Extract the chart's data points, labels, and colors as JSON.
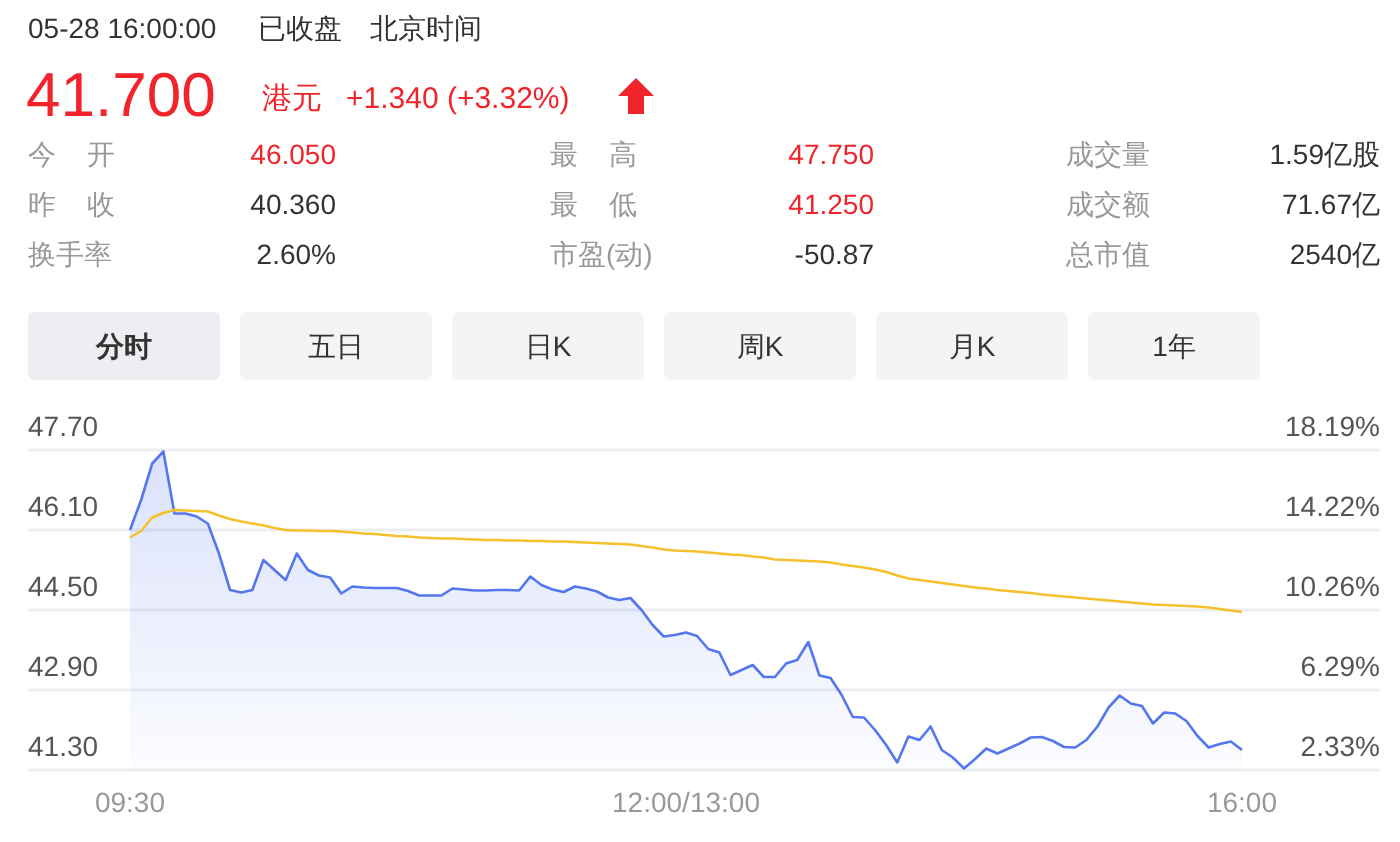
{
  "chart_data": {
    "type": "area",
    "annotations": [
      "05-28 16:00:00",
      "已收盘",
      "北京时间",
      "41.700",
      "港元",
      "+1.340 (+3.32%)",
      "今开",
      "46.050",
      "最高",
      "47.750",
      "成交量",
      "1.59亿股",
      "昨收",
      "40.360",
      "最低",
      "41.250",
      "成交额",
      "71.67亿",
      "换手率",
      "2.60%",
      "市盈(动)",
      "-50.87",
      "总市值",
      "2540亿",
      "分时",
      "五日",
      "日K",
      "周K",
      "月K",
      "1年"
    ],
    "categories": [
      "09:30",
      null,
      null,
      null,
      null,
      null,
      null,
      null,
      null,
      null,
      null,
      null,
      null,
      null,
      null,
      null,
      null,
      null,
      null,
      null,
      null,
      null,
      null,
      null,
      null,
      null,
      null,
      null,
      null,
      null,
      null,
      null,
      null,
      null,
      null,
      null,
      null,
      null,
      null,
      null,
      null,
      null,
      null,
      null,
      null,
      null,
      null,
      null,
      null,
      null,
      "12:00/13:00",
      null,
      null,
      null,
      null,
      null,
      null,
      null,
      null,
      null,
      null,
      null,
      null,
      null,
      null,
      null,
      null,
      null,
      null,
      null,
      null,
      null,
      null,
      null,
      null,
      null,
      null,
      null,
      null,
      null,
      null,
      null,
      null,
      null,
      null,
      null,
      null,
      null,
      null,
      null,
      null,
      null,
      null,
      null,
      null,
      null,
      null,
      null,
      null,
      null,
      "16:00"
    ],
    "ylim": [
      41.3,
      47.7
    ],
    "yticks": [
      {
        "value": 41.3,
        "label": "41.30"
      },
      {
        "value": 42.9,
        "label": "42.90"
      },
      {
        "value": 44.5,
        "label": "44.50"
      },
      {
        "value": 46.1,
        "label": "46.10"
      },
      {
        "value": 47.7,
        "label": "47.70"
      }
    ],
    "y2lim": [
      2.33,
      18.19
    ],
    "y2ticks": [
      {
        "value": 2.33,
        "label": "2.33%"
      },
      {
        "value": 6.29,
        "label": "6.29%"
      },
      {
        "value": 10.26,
        "label": "10.26%"
      },
      {
        "value": 14.22,
        "label": "14.22%"
      },
      {
        "value": 18.19,
        "label": "18.19%"
      }
    ],
    "grid": "y",
    "series": [
      {
        "color": "#5577ee",
        "values": [
          46.1,
          46.7,
          47.43,
          47.67,
          46.43,
          46.43,
          46.37,
          46.23,
          45.63,
          44.9,
          44.85,
          44.9,
          45.5,
          45.3,
          45.1,
          45.63,
          45.3,
          45.19,
          45.15,
          44.83,
          44.97,
          44.95,
          44.94,
          44.94,
          44.94,
          44.88,
          44.79,
          44.79,
          44.79,
          44.93,
          44.91,
          44.89,
          44.89,
          44.9,
          44.9,
          44.89,
          45.17,
          45.0,
          44.91,
          44.86,
          44.97,
          44.93,
          44.87,
          44.75,
          44.7,
          44.74,
          44.5,
          44.2,
          43.97,
          44.0,
          44.05,
          43.98,
          43.72,
          43.65,
          43.2,
          43.3,
          43.4,
          43.16,
          43.16,
          43.43,
          43.5,
          43.86,
          43.19,
          43.14,
          42.8,
          42.36,
          42.35,
          42.1,
          41.8,
          41.45,
          41.97,
          41.9,
          42.17,
          41.7,
          41.55,
          41.33,
          41.52,
          41.73,
          41.63,
          41.73,
          41.83,
          41.95,
          41.96,
          41.88,
          41.76,
          41.75,
          41.9,
          42.17,
          42.55,
          42.79,
          42.63,
          42.58,
          42.23,
          42.45,
          42.43,
          42.28,
          41.98,
          41.75,
          41.82,
          41.87,
          41.7
        ]
      },
      {
        "type": "line",
        "color": "#f5c02c",
        "values": [
          45.95,
          46.08,
          46.35,
          46.44,
          46.5,
          46.49,
          46.48,
          46.47,
          46.39,
          46.32,
          46.27,
          46.23,
          46.19,
          46.14,
          46.1,
          46.09,
          46.09,
          46.08,
          46.08,
          46.07,
          46.05,
          46.03,
          46.02,
          46.0,
          45.98,
          45.97,
          45.95,
          45.94,
          45.93,
          45.93,
          45.92,
          45.91,
          45.9,
          45.9,
          45.89,
          45.89,
          45.88,
          45.88,
          45.87,
          45.87,
          45.86,
          45.85,
          45.84,
          45.83,
          45.82,
          45.81,
          45.78,
          45.75,
          45.71,
          45.69,
          45.68,
          45.67,
          45.65,
          45.63,
          45.61,
          45.6,
          45.57,
          45.55,
          45.51,
          45.5,
          45.49,
          45.48,
          45.47,
          45.45,
          45.41,
          45.38,
          45.35,
          45.31,
          45.26,
          45.19,
          45.13,
          45.1,
          45.07,
          45.04,
          45.01,
          44.98,
          44.95,
          44.93,
          44.9,
          44.88,
          44.86,
          44.84,
          44.81,
          44.79,
          44.77,
          44.75,
          44.73,
          44.71,
          44.69,
          44.67,
          44.65,
          44.63,
          44.61,
          44.6,
          44.59,
          44.58,
          44.57,
          44.55,
          44.52,
          44.49,
          44.46
        ]
      }
    ]
  }
}
